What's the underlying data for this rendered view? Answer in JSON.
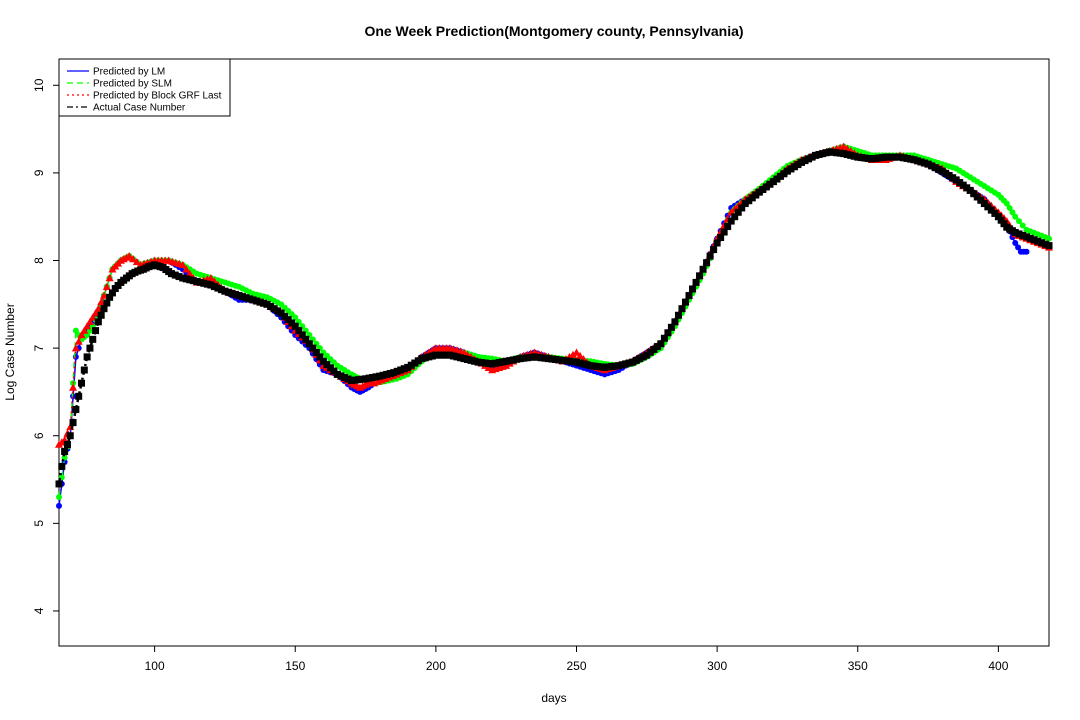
{
  "chart_data": {
    "type": "scatter",
    "title": "One Week Prediction(Montgomery county, Pennsylvania)",
    "xlabel": "days",
    "ylabel": "Log Case Number",
    "xlim": [
      66,
      418
    ],
    "ylim": [
      3.6,
      10.3
    ],
    "xticks": [
      100,
      150,
      200,
      250,
      300,
      350,
      400
    ],
    "yticks": [
      4,
      5,
      6,
      7,
      8,
      9,
      10
    ],
    "grid": false,
    "legend_position": "top-left",
    "series": [
      {
        "name": "Predicted by LM",
        "color": "#0000ff",
        "line_style": "solid",
        "marker": "circle",
        "x": [
          66,
          68,
          70,
          72,
          74,
          76,
          78,
          80,
          82,
          85,
          88,
          91,
          95,
          100,
          105,
          110,
          115,
          120,
          125,
          130,
          135,
          140,
          145,
          150,
          155,
          160,
          165,
          170,
          173,
          176,
          178,
          182,
          186,
          190,
          195,
          200,
          205,
          210,
          215,
          220,
          225,
          230,
          235,
          240,
          245,
          250,
          255,
          260,
          265,
          270,
          275,
          280,
          285,
          290,
          295,
          300,
          305,
          310,
          315,
          320,
          325,
          330,
          335,
          340,
          345,
          350,
          355,
          360,
          365,
          370,
          375,
          380,
          385,
          390,
          395,
          400,
          403,
          406,
          408,
          410
        ],
        "y": [
          5.2,
          5.7,
          6.0,
          6.9,
          7.1,
          7.2,
          7.3,
          7.4,
          7.6,
          7.9,
          8.0,
          8.05,
          7.95,
          8.0,
          8.0,
          7.9,
          7.75,
          7.75,
          7.65,
          7.55,
          7.55,
          7.5,
          7.35,
          7.15,
          7.0,
          6.75,
          6.7,
          6.55,
          6.5,
          6.55,
          6.6,
          6.65,
          6.7,
          6.75,
          6.9,
          7.0,
          7.0,
          6.95,
          6.9,
          6.75,
          6.8,
          6.9,
          6.95,
          6.9,
          6.85,
          6.8,
          6.75,
          6.7,
          6.75,
          6.85,
          6.95,
          7.05,
          7.3,
          7.6,
          7.9,
          8.25,
          8.6,
          8.7,
          8.8,
          8.9,
          9.05,
          9.15,
          9.2,
          9.25,
          9.3,
          9.2,
          9.15,
          9.15,
          9.2,
          9.15,
          9.1,
          9.0,
          8.9,
          8.8,
          8.7,
          8.5,
          8.4,
          8.2,
          8.1,
          8.1
        ]
      },
      {
        "name": "Predicted by SLM",
        "color": "#00ff00",
        "line_style": "dashed",
        "marker": "circle",
        "x": [
          66,
          68,
          70,
          72,
          74,
          76,
          78,
          80,
          82,
          85,
          88,
          91,
          95,
          100,
          105,
          110,
          115,
          120,
          125,
          130,
          135,
          140,
          145,
          150,
          155,
          160,
          165,
          170,
          173,
          176,
          178,
          182,
          186,
          190,
          195,
          200,
          205,
          210,
          215,
          220,
          225,
          230,
          235,
          240,
          245,
          250,
          255,
          260,
          265,
          270,
          275,
          280,
          285,
          290,
          295,
          300,
          305,
          310,
          315,
          320,
          325,
          330,
          335,
          340,
          345,
          350,
          355,
          360,
          365,
          370,
          375,
          380,
          385,
          390,
          395,
          400,
          403,
          406,
          410,
          414,
          418
        ],
        "y": [
          5.3,
          5.75,
          6.0,
          7.2,
          7.1,
          7.15,
          7.25,
          7.4,
          7.6,
          7.9,
          8.0,
          8.05,
          7.95,
          8.0,
          8.0,
          7.95,
          7.85,
          7.8,
          7.75,
          7.7,
          7.62,
          7.58,
          7.5,
          7.35,
          7.15,
          6.95,
          6.8,
          6.7,
          6.65,
          6.62,
          6.6,
          6.62,
          6.65,
          6.7,
          6.85,
          6.95,
          6.95,
          6.95,
          6.9,
          6.88,
          6.85,
          6.9,
          6.92,
          6.9,
          6.88,
          6.86,
          6.85,
          6.82,
          6.8,
          6.82,
          6.9,
          7.0,
          7.25,
          7.55,
          7.85,
          8.2,
          8.55,
          8.7,
          8.82,
          8.95,
          9.08,
          9.15,
          9.2,
          9.25,
          9.3,
          9.25,
          9.2,
          9.2,
          9.2,
          9.2,
          9.15,
          9.1,
          9.05,
          8.95,
          8.85,
          8.75,
          8.65,
          8.5,
          8.35,
          8.3,
          8.25
        ]
      },
      {
        "name": "Predicted by Block GRF Last",
        "color": "#ff0000",
        "line_style": "dotted",
        "marker": "triangle",
        "x": [
          66,
          68,
          70,
          72,
          74,
          76,
          78,
          80,
          82,
          85,
          88,
          91,
          95,
          100,
          105,
          110,
          115,
          120,
          125,
          130,
          135,
          140,
          145,
          150,
          155,
          160,
          165,
          170,
          173,
          176,
          178,
          182,
          186,
          190,
          195,
          200,
          205,
          210,
          215,
          220,
          225,
          230,
          235,
          240,
          245,
          250,
          255,
          260,
          265,
          270,
          275,
          280,
          285,
          290,
          295,
          300,
          305,
          310,
          315,
          320,
          325,
          330,
          335,
          340,
          345,
          350,
          355,
          360,
          365,
          370,
          375,
          380,
          385,
          390,
          395,
          400,
          403,
          406,
          410,
          414,
          418
        ],
        "y": [
          5.9,
          5.95,
          6.1,
          7.0,
          7.15,
          7.25,
          7.35,
          7.45,
          7.6,
          7.9,
          8.0,
          8.05,
          7.95,
          8.0,
          8.0,
          7.95,
          7.75,
          7.8,
          7.65,
          7.6,
          7.55,
          7.5,
          7.4,
          7.2,
          7.05,
          6.8,
          6.7,
          6.6,
          6.55,
          6.6,
          6.6,
          6.65,
          6.7,
          6.75,
          6.9,
          7.0,
          7.0,
          6.95,
          6.85,
          6.75,
          6.8,
          6.9,
          6.95,
          6.9,
          6.85,
          6.95,
          6.8,
          6.75,
          6.8,
          6.85,
          6.95,
          7.05,
          7.3,
          7.6,
          7.9,
          8.25,
          8.55,
          8.7,
          8.8,
          8.9,
          9.05,
          9.15,
          9.2,
          9.25,
          9.3,
          9.2,
          9.15,
          9.15,
          9.2,
          9.15,
          9.1,
          9.05,
          8.9,
          8.8,
          8.7,
          8.55,
          8.45,
          8.3,
          8.25,
          8.2,
          8.15
        ]
      },
      {
        "name": "Actual Case Number",
        "color": "#000000",
        "line_style": "dashdot",
        "marker": "square",
        "x": [
          66,
          67,
          68,
          69,
          70,
          71,
          72,
          73,
          74,
          75,
          76,
          77,
          78,
          79,
          80,
          82,
          84,
          86,
          88,
          90,
          92,
          94,
          96,
          98,
          100,
          103,
          106,
          110,
          115,
          120,
          125,
          130,
          135,
          140,
          145,
          150,
          155,
          160,
          165,
          170,
          175,
          180,
          185,
          190,
          195,
          200,
          205,
          210,
          215,
          220,
          225,
          230,
          235,
          240,
          245,
          250,
          255,
          260,
          265,
          270,
          275,
          280,
          285,
          290,
          295,
          300,
          305,
          310,
          315,
          320,
          325,
          330,
          335,
          340,
          345,
          350,
          355,
          360,
          365,
          370,
          375,
          380,
          385,
          390,
          395,
          400,
          403,
          406,
          410,
          414,
          418
        ],
        "y": [
          5.45,
          5.65,
          5.82,
          5.9,
          6.0,
          6.15,
          6.3,
          6.45,
          6.6,
          6.75,
          6.9,
          7.0,
          7.1,
          7.2,
          7.3,
          7.45,
          7.58,
          7.68,
          7.75,
          7.8,
          7.85,
          7.88,
          7.9,
          7.93,
          7.95,
          7.92,
          7.85,
          7.8,
          7.76,
          7.72,
          7.65,
          7.6,
          7.55,
          7.5,
          7.4,
          7.25,
          7.05,
          6.85,
          6.7,
          6.63,
          6.65,
          6.68,
          6.72,
          6.78,
          6.88,
          6.92,
          6.92,
          6.88,
          6.84,
          6.82,
          6.85,
          6.88,
          6.9,
          6.88,
          6.86,
          6.84,
          6.8,
          6.78,
          6.8,
          6.84,
          6.92,
          7.05,
          7.3,
          7.6,
          7.9,
          8.2,
          8.45,
          8.65,
          8.78,
          8.9,
          9.02,
          9.12,
          9.2,
          9.24,
          9.22,
          9.18,
          9.16,
          9.18,
          9.18,
          9.15,
          9.1,
          9.02,
          8.92,
          8.8,
          8.65,
          8.5,
          8.38,
          8.32,
          8.27,
          8.22,
          8.17
        ]
      }
    ]
  }
}
